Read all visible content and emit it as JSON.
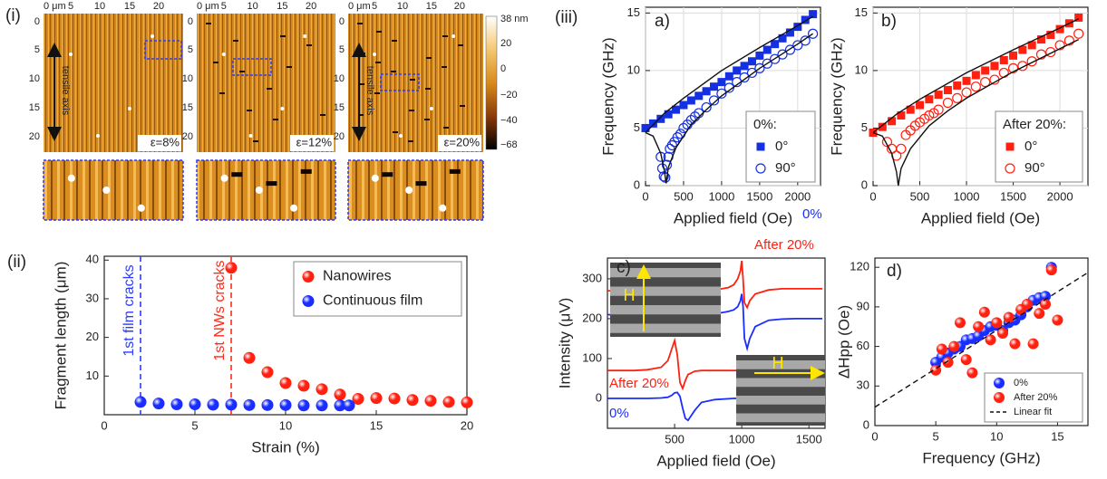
{
  "afm": {
    "label": "(i)",
    "x_ticks": [
      "0 μm",
      "5",
      "10",
      "15",
      "20"
    ],
    "y_ticks": [
      "0",
      "5",
      "10",
      "15",
      "20"
    ],
    "axis_note": "tensile axis",
    "strains": [
      "ε=8%",
      "ε=12%",
      "ε=20%"
    ],
    "colorbar": [
      "38 nm",
      "20",
      "0",
      "−20",
      "−40",
      "−68"
    ]
  },
  "group_label": "(iii)",
  "chart_data": [
    {
      "type": "scatter",
      "label": "(ii)",
      "x_label": "Strain (%)",
      "y_label": "Fragment length (μm)",
      "xlim": [
        0,
        20
      ],
      "xticks": [
        0,
        5,
        10,
        15,
        20
      ],
      "ylim": [
        0,
        41
      ],
      "yticks": [
        10,
        20,
        30,
        40
      ],
      "legend": "upper right",
      "series": [
        {
          "name": "Nanowires",
          "color": "#ff2010",
          "marker": "ball",
          "x": [
            7,
            8,
            9,
            10,
            11,
            12,
            13,
            14,
            15,
            16,
            17,
            18,
            19,
            20
          ],
          "values": [
            38,
            14.7,
            11,
            8.2,
            7.5,
            6.6,
            5.2,
            4.1,
            4.3,
            4.2,
            3.8,
            3.6,
            3.3,
            3.2
          ]
        },
        {
          "name": "Continuous film",
          "color": "#1a2dff",
          "marker": "ball",
          "x": [
            2,
            3,
            4,
            5,
            6,
            7,
            8,
            9,
            10,
            11,
            12,
            13,
            13.5
          ],
          "values": [
            3.3,
            2.9,
            2.7,
            2.7,
            2.6,
            2.6,
            2.5,
            2.5,
            2.5,
            2.4,
            2.4,
            2.4,
            2.4
          ]
        }
      ],
      "vlines": [
        {
          "x": 2,
          "color": "#2b3bff",
          "label": "1st film cracks"
        },
        {
          "x": 7,
          "color": "#ff2a1a",
          "label": "1st NWs cracks"
        }
      ]
    },
    {
      "type": "scatter",
      "label": "a)",
      "x_label": "Applied field (Oe)",
      "y_label": "Frequency (GHz)",
      "xlim": [
        0,
        2300
      ],
      "xticks": [
        0,
        500,
        1000,
        1500,
        2000
      ],
      "ylim": [
        0,
        15.5
      ],
      "yticks": [
        0,
        5,
        10,
        15
      ],
      "grid": true,
      "legend": "lower right",
      "legend_title": "0%:",
      "series": [
        {
          "name": "0°",
          "color": "#1530e0",
          "marker": "square",
          "x": [
            0,
            100,
            200,
            300,
            400,
            500,
            600,
            700,
            800,
            900,
            1000,
            1100,
            1200,
            1300,
            1400,
            1500,
            1600,
            1700,
            1800,
            1900,
            2000,
            2100,
            2200
          ],
          "values": [
            5,
            5.4,
            5.8,
            6.2,
            6.6,
            7,
            7.4,
            7.8,
            8.2,
            8.6,
            9,
            9.5,
            10,
            10.4,
            10.8,
            11.3,
            11.8,
            12.3,
            12.8,
            13.3,
            13.8,
            14.4,
            14.9
          ]
        },
        {
          "name": "90°",
          "color": "#1530e0",
          "marker": "circle",
          "filled": false,
          "x": [
            200,
            220,
            240,
            260,
            280,
            300,
            320,
            350,
            380,
            420,
            460,
            500,
            550,
            600,
            650,
            700,
            800,
            900,
            1000,
            1100,
            1200,
            1300,
            1400,
            1500,
            1600,
            1700,
            1800,
            1900,
            2000,
            2100,
            2200
          ],
          "values": [
            2.5,
            1.5,
            0.8,
            0.7,
            1.8,
            2.5,
            3.2,
            3.5,
            3.8,
            4.2,
            4.5,
            5,
            5.3,
            5.7,
            6,
            6.3,
            6.8,
            7.4,
            8,
            8.5,
            9,
            9.4,
            9.8,
            10.2,
            10.6,
            11,
            11.4,
            11.8,
            12.2,
            12.6,
            13.2
          ]
        },
        {
          "color": "#111111",
          "marker": "none",
          "line": true,
          "x": [
            0,
            250,
            500,
            1000,
            1500,
            2000,
            2200
          ],
          "values": [
            4.6,
            6.3,
            7.6,
            10,
            12,
            13.9,
            14.7
          ]
        },
        {
          "color": "#111111",
          "marker": "none",
          "line": true,
          "x": [
            0,
            100,
            200,
            250,
            270,
            300,
            400,
            600,
            800,
            1000,
            1500,
            2000,
            2200
          ],
          "values": [
            4.6,
            4.3,
            2.8,
            1.2,
            0.2,
            1.6,
            3.3,
            5.3,
            6.6,
            7.8,
            10.2,
            12.3,
            13.2
          ]
        }
      ]
    },
    {
      "type": "scatter",
      "label": "b)",
      "x_label": "Applied field (Oe)",
      "y_label": "Frequency (GHz)",
      "xlim": [
        0,
        2300
      ],
      "xticks": [
        0,
        500,
        1000,
        1500,
        2000
      ],
      "ylim": [
        0,
        15.5
      ],
      "yticks": [
        0,
        5,
        10,
        15
      ],
      "grid": true,
      "legend": "lower right",
      "legend_title": "After 20%:",
      "series": [
        {
          "name": "0°",
          "color": "#ff2010",
          "marker": "square",
          "x": [
            0,
            100,
            200,
            300,
            400,
            500,
            600,
            700,
            800,
            900,
            1000,
            1100,
            1200,
            1300,
            1400,
            1500,
            1600,
            1700,
            1800,
            1900,
            2000,
            2100,
            2200
          ],
          "values": [
            4.6,
            5.1,
            5.6,
            6.1,
            6.6,
            7,
            7.5,
            7.9,
            8.3,
            8.7,
            9.1,
            9.6,
            10,
            10.4,
            10.9,
            11.3,
            11.8,
            12.2,
            12.7,
            13.1,
            13.6,
            14.1,
            14.6
          ]
        },
        {
          "name": "90°",
          "color": "#ff2010",
          "marker": "circle",
          "filled": false,
          "x": [
            150,
            200,
            250,
            300,
            350,
            400,
            450,
            500,
            550,
            600,
            650,
            700,
            800,
            900,
            1000,
            1100,
            1200,
            1300,
            1400,
            1500,
            1600,
            1700,
            1800,
            1900,
            2000,
            2100,
            2200
          ],
          "values": [
            3.8,
            3.2,
            2.6,
            3.2,
            4.4,
            4.8,
            5.2,
            5.5,
            5.8,
            6.1,
            6.3,
            6.6,
            7.2,
            7.6,
            8.1,
            8.6,
            9,
            9.2,
            9.8,
            10.2,
            10.4,
            10.8,
            11.4,
            11.6,
            12.2,
            12.6,
            13.2
          ]
        },
        {
          "color": "#111111",
          "marker": "none",
          "line": true,
          "x": [
            0,
            250,
            500,
            1000,
            1500,
            2000,
            2200
          ],
          "values": [
            4.6,
            6.2,
            7.5,
            9.8,
            11.8,
            13.7,
            14.5
          ]
        },
        {
          "color": "#111111",
          "marker": "none",
          "line": true,
          "x": [
            0,
            100,
            200,
            250,
            270,
            300,
            400,
            600,
            800,
            1000,
            1500,
            2000,
            2200
          ],
          "values": [
            4.6,
            4.3,
            2.8,
            1.2,
            0,
            1.5,
            3.2,
            5.2,
            6.5,
            7.6,
            9.9,
            11.9,
            12.7
          ]
        }
      ]
    },
    {
      "type": "line",
      "label": "c)",
      "x_label": "Applied field (Oe)",
      "y_label": "Intensity (μV)",
      "xlim": [
        0,
        1620
      ],
      "xticks": [
        500,
        1000,
        1500
      ],
      "ylim": [
        -75,
        352
      ],
      "yticks": [
        0,
        100,
        200,
        300
      ],
      "x": [
        0,
        100,
        200,
        300,
        400,
        450,
        480,
        500,
        520,
        540,
        560,
        580,
        600,
        650,
        700,
        800,
        900,
        940,
        970,
        990,
        1000,
        1010,
        1020,
        1040,
        1060,
        1100,
        1200,
        1300,
        1400,
        1500,
        1600
      ],
      "series": [
        {
          "name": "0%",
          "color": "#1a2dff",
          "values": [
            0,
            0,
            0,
            0,
            1,
            3,
            8,
            14,
            15,
            5,
            -25,
            -50,
            -55,
            -30,
            -10,
            -3,
            -1,
            0,
            0,
            0,
            0,
            0,
            0,
            0,
            0,
            0,
            0,
            0,
            0,
            0,
            0
          ]
        },
        {
          "name": "After 20%",
          "color": "#ff2010",
          "values": [
            70,
            70,
            70,
            72,
            78,
            95,
            125,
            145,
            110,
            40,
            25,
            45,
            60,
            68,
            70,
            70,
            70,
            70,
            70,
            70,
            70,
            70,
            70,
            70,
            70,
            70,
            70,
            70,
            70,
            70,
            70
          ]
        },
        {
          "name": "0%",
          "color": "#1a2dff",
          "values": [
            210,
            210,
            210,
            210,
            210,
            210,
            210,
            210,
            210,
            210,
            210,
            210,
            210,
            210,
            210,
            212,
            218,
            222,
            230,
            245,
            262,
            230,
            150,
            125,
            150,
            180,
            196,
            199,
            200,
            200,
            200
          ]
        },
        {
          "name": "After 20%",
          "color": "#ff2010",
          "values": [
            270,
            270,
            270,
            270,
            270,
            270,
            270,
            270,
            270,
            270,
            270,
            270,
            270,
            270,
            270,
            272,
            278,
            285,
            300,
            320,
            345,
            300,
            240,
            228,
            245,
            262,
            272,
            275,
            275,
            275,
            275
          ]
        }
      ],
      "annotations": [
        "H",
        "H"
      ]
    },
    {
      "type": "scatter",
      "label": "d)",
      "x_label": "Frequency (GHz)",
      "y_label": "ΔHpp (Oe)",
      "xlim": [
        0,
        17.5
      ],
      "xticks": [
        0,
        5,
        10,
        15
      ],
      "ylim": [
        0,
        127
      ],
      "yticks": [
        0,
        30,
        60,
        90,
        120
      ],
      "legend": "lower right",
      "series": [
        {
          "name": "0%",
          "color": "#1a2dff",
          "marker": "ball",
          "x": [
            5,
            5.5,
            6,
            6.5,
            7,
            7.5,
            8,
            8.5,
            9,
            9.5,
            10,
            10.5,
            11,
            11.5,
            12,
            12.5,
            13,
            13.5,
            14,
            14.5
          ],
          "values": [
            48,
            52,
            55,
            58,
            60,
            65,
            66,
            68,
            72,
            75,
            76,
            72,
            78,
            80,
            84,
            90,
            95,
            97,
            98,
            120
          ]
        },
        {
          "name": "After 20%",
          "color": "#ff2010",
          "marker": "ball",
          "x": [
            5,
            5.5,
            6,
            6.5,
            7,
            7.5,
            8,
            8.5,
            9,
            9.5,
            10,
            10.5,
            11,
            11.5,
            12,
            12.5,
            13,
            13.5,
            14,
            14.5,
            15
          ],
          "values": [
            42,
            58,
            48,
            60,
            78,
            50,
            40,
            75,
            86,
            65,
            78,
            70,
            82,
            62,
            88,
            92,
            62,
            85,
            92,
            118,
            80
          ]
        },
        {
          "name": "Linear fit",
          "color": "#111111",
          "marker": "none",
          "line": true,
          "dash": true,
          "x": [
            0,
            17.5
          ],
          "values": [
            14,
            116
          ]
        }
      ]
    }
  ]
}
